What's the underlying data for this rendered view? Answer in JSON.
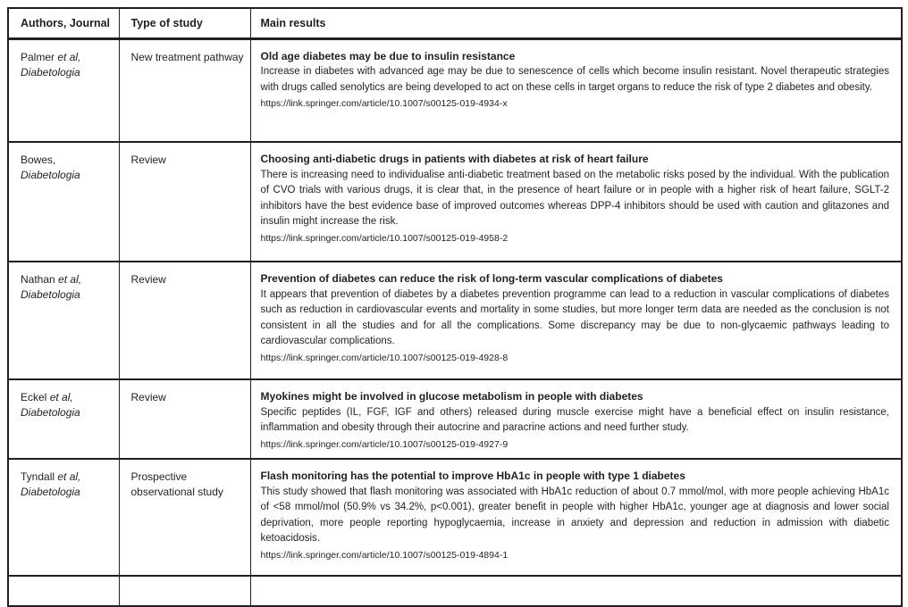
{
  "colors": {
    "text": "#231f20",
    "border": "#231f20",
    "background": "#ffffff"
  },
  "table": {
    "headers": {
      "authors": "Authors, Journal",
      "type": "Type of study",
      "results": "Main results"
    },
    "rows": [
      {
        "author_name": "Palmer",
        "author_etal": "et al,",
        "journal": "Diabetologia",
        "study_type": "New treatment pathway",
        "title": "Old age diabetes may be due to insulin resistance",
        "body": "Increase in diabetes with advanced age may be due to senescence of cells which become insulin resistant. Novel thera­peutic strategies with drugs called senolytics are being developed to act on these cells in target organs to reduce the risk of type 2 diabetes and obesity.",
        "url": "https://link.springer.com/article/10.1007/s00125-019-4934-x"
      },
      {
        "author_name": "Bowes,",
        "author_etal": "",
        "journal": "Diabetologia",
        "study_type": "Review",
        "title": "Choosing anti-diabetic drugs in patients with diabetes at risk of heart failure",
        "body": "There is increasing need to individualise anti-diabetic treatment based on the metabolic risks posed by the individual. With the publication of CVO trials with various drugs, it is clear that, in the presence of heart failure or in people with a higher risk of heart failure, SGLT-2 inhibitors have the best evidence base of improved outcomes whereas DPP-4 inhibitors should be used with caution and glitazones and insulin might increase the risk.",
        "url": "https://link.springer.com/article/10.1007/s00125-019-4958-2"
      },
      {
        "author_name": "Nathan",
        "author_etal": "et al,",
        "journal": "Diabetologia",
        "study_type": "Review",
        "title": "Prevention of diabetes can reduce the risk of long-term vascular complications of diabetes",
        "body": "It appears that prevention of diabetes by a diabetes prevention programme can lead to a reduction in vascular complica­tions of diabetes such as reduction in cardiovascular events and mortality in some studies, but more longer term data are needed as the conclusion is not consistent in all the studies and for all the complications. Some discrepancy may be due to non-glycaemic pathways leading to cardiovascular complications.",
        "url": "https://link.springer.com/article/10.1007/s00125-019-4928-8"
      },
      {
        "author_name": "Eckel",
        "author_etal": "et al,",
        "journal": "Diabetologia",
        "study_type": "Review",
        "title": "Myokines might be involved in glucose metabolism in people with diabetes",
        "body": "Specific peptides (IL, FGF, IGF and others) released during muscle exercise might have a beneficial effect on insulin resis­tance, inflammation and obesity through their autocrine and paracrine actions and need further study.",
        "url": "https://link.springer.com/article/10.1007/s00125-019-4927-9"
      },
      {
        "author_name": "Tyndall",
        "author_etal": "et al,",
        "journal": "Diabetologia",
        "study_type": "Prospective observational study",
        "title": "Flash monitoring has the potential to improve HbA1c in people with type 1 diabetes",
        "body": "This study showed that flash monitoring was associated with HbA1c reduction of about 0.7 mmol/mol, with more people achieving HbA1c of <58 mmol/mol (50.9% vs 34.2%, p<0.001), greater benefit in people with higher HbA1c, younger age at diagnosis and lower social deprivation, more people reporting hypoglycaemia, increase in anxiety and depression and reduction in admission with diabetic ketoacidosis.",
        "url": "https://link.springer.com/article/10.1007/s00125-019-4894-1"
      }
    ]
  }
}
